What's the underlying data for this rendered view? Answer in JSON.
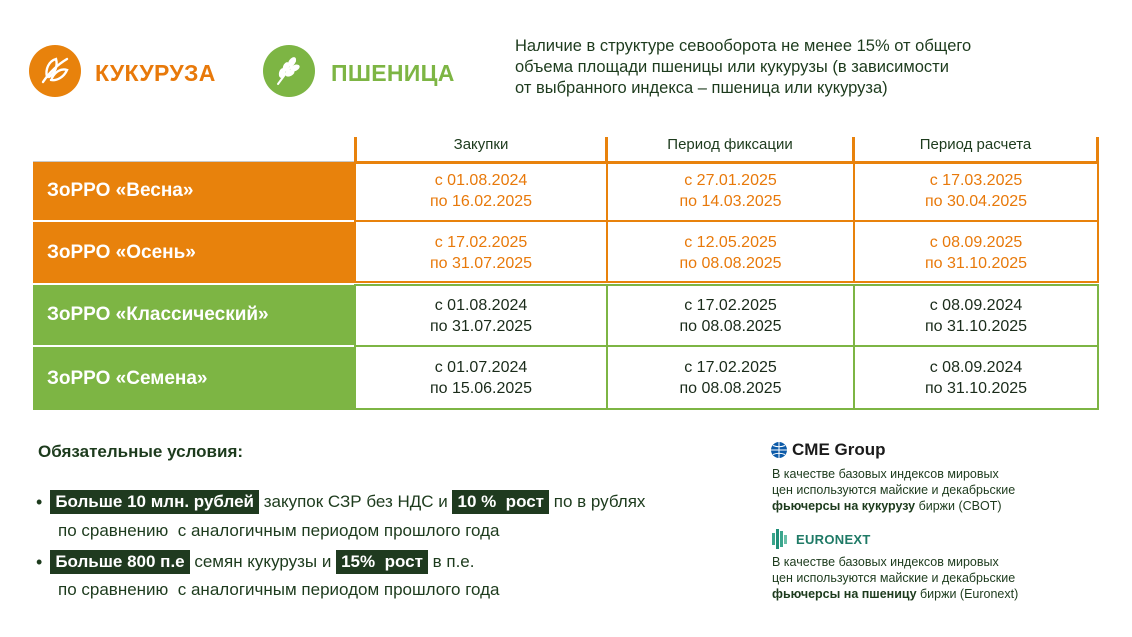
{
  "header": {
    "corn_label": "КУКУРУЗА",
    "wheat_label": "ПШЕНИЦА",
    "intro_lines": [
      "Наличие в структуре севооборота не менее 15% от общего",
      "объема площади пшеницы или кукурузы (в зависимости",
      "от выбранного индекса – пшеница или кукуруза)"
    ]
  },
  "table": {
    "columns": [
      "Закупки",
      "Период фиксации",
      "Период расчета"
    ],
    "rows": [
      {
        "name": "ЗоРРО «Весна»",
        "style": "orange",
        "cells": [
          [
            "с 01.08.2024",
            "по 16.02.2025"
          ],
          [
            "с 27.01.2025",
            "по 14.03.2025"
          ],
          [
            "с 17.03.2025",
            "по 30.04.2025"
          ]
        ]
      },
      {
        "name": "ЗоРРО «Осень»",
        "style": "orange",
        "cells": [
          [
            "с 17.02.2025",
            "по 31.07.2025"
          ],
          [
            "с 12.05.2025",
            "по 08.08.2025"
          ],
          [
            "с 08.09.2025",
            "по 31.10.2025"
          ]
        ]
      },
      {
        "name": "ЗоРРО «Классический»",
        "style": "green",
        "cells": [
          [
            "с 01.08.2024",
            "по 31.07.2025"
          ],
          [
            "с 17.02.2025",
            "по 08.08.2025"
          ],
          [
            "с 08.09.2024",
            "по 31.10.2025"
          ]
        ]
      },
      {
        "name": "ЗоРРО «Семена»",
        "style": "green",
        "cells": [
          [
            "с 01.07.2024",
            "по 15.06.2025"
          ],
          [
            "с 17.02.2025",
            "по 08.08.2025"
          ],
          [
            "с 08.09.2024",
            "по 31.10.2025"
          ]
        ]
      }
    ]
  },
  "conditions": {
    "title": "Обязательные условия:",
    "item1": {
      "hl1": "Больше 10 млн. рублей",
      "text1": " закупок СЗР без НДС и ",
      "hl2": "10 %  рост",
      "text2": " по в рублях",
      "cont": "по сравнению  с аналогичным периодом прошлого года"
    },
    "item2": {
      "hl1": "Больше 800 п.е",
      "text1": " семян кукурузы и ",
      "hl2": "15%  рост",
      "text2": " в п.е.",
      "cont": "по сравнению  с аналогичным периодом прошлого года"
    }
  },
  "exchanges": {
    "cme": {
      "logo_text": "CME Group",
      "line1": "В качестве базовых индексов мировых",
      "line2": "цен используются майские и декабрьские",
      "line3_bold": "фьючерсы на кукурузу",
      "line3_rest": " биржи (CBOT)"
    },
    "euronext": {
      "logo_text": "EURONEXT",
      "line1": "В качестве базовых индексов мировых",
      "line2": "цен используются майские и декабрьские",
      "line3_bold": "фьючерсы на пшеницу",
      "line3_rest": " биржи (Euronext)"
    }
  },
  "colors": {
    "orange": "#e8820c",
    "green": "#7db544",
    "dark_green": "#1f3a1f"
  }
}
